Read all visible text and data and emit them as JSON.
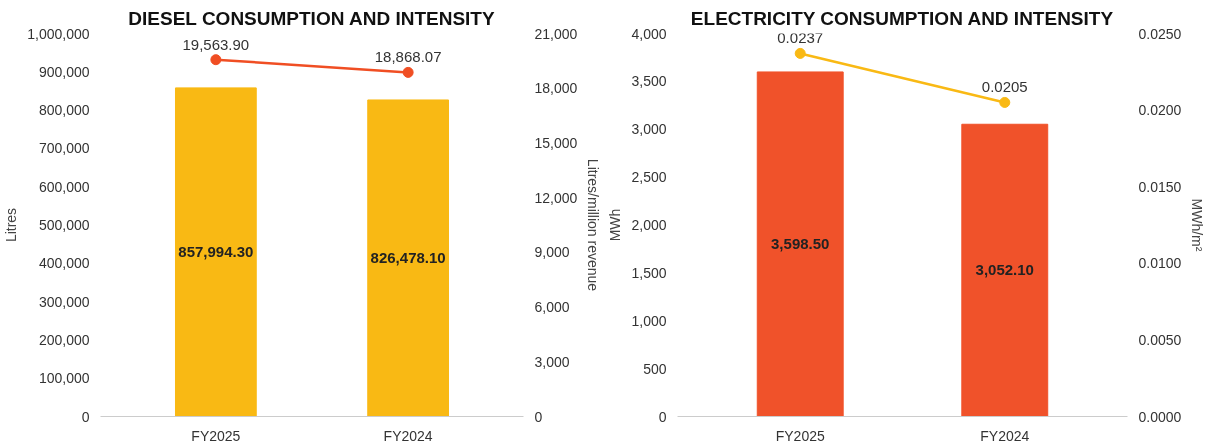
{
  "chart_data": [
    {
      "type": "bar",
      "title": "DIESEL CONSUMPTION AND INTENSITY",
      "ylabel": "Litres",
      "y2label": "Litres/million revenue",
      "categories": [
        "FY2025",
        "FY2024"
      ],
      "marker": "circle",
      "ylim": [
        0,
        1000000
      ],
      "yticks": [
        {
          "value": 0,
          "label": "0"
        },
        {
          "value": 100000,
          "label": "100,000"
        },
        {
          "value": 200000,
          "label": "200,000"
        },
        {
          "value": 300000,
          "label": "300,000"
        },
        {
          "value": 400000,
          "label": "400,000"
        },
        {
          "value": 500000,
          "label": "500,000"
        },
        {
          "value": 600000,
          "label": "600,000"
        },
        {
          "value": 700000,
          "label": "700,000"
        },
        {
          "value": 800000,
          "label": "800,000"
        },
        {
          "value": 900000,
          "label": "900,000"
        },
        {
          "value": 1000000,
          "label": "1,000,000"
        }
      ],
      "y2lim": [
        0,
        21000
      ],
      "y2ticks": [
        {
          "value": 0,
          "label": "0"
        },
        {
          "value": 3000,
          "label": "3,000"
        },
        {
          "value": 6000,
          "label": "6,000"
        },
        {
          "value": 9000,
          "label": "9,000"
        },
        {
          "value": 12000,
          "label": "12,000"
        },
        {
          "value": 15000,
          "label": "15,000"
        },
        {
          "value": 18000,
          "label": "18,000"
        },
        {
          "value": 21000,
          "label": "21,000"
        }
      ],
      "series": [
        {
          "color": "#f9b914",
          "values": [
            857994.3,
            826478.1
          ],
          "value_labels": [
            "857,994.30",
            "826,478.10"
          ]
        },
        {
          "type": "line",
          "axis": "y2",
          "color": "#f04e23",
          "values": [
            19563.9,
            18868.07
          ],
          "value_labels": [
            "19,563.90",
            "18,868.07"
          ]
        }
      ]
    },
    {
      "type": "bar",
      "title": "ELECTRICITY CONSUMPTION AND INTENSITY",
      "ylabel": "MWh",
      "y2label": "MWh/m²",
      "categories": [
        "FY2025",
        "FY2024"
      ],
      "marker": "circle",
      "ylim": [
        0,
        4000
      ],
      "yticks": [
        {
          "value": 0,
          "label": "0"
        },
        {
          "value": 500,
          "label": "500"
        },
        {
          "value": 1000,
          "label": "1,000"
        },
        {
          "value": 1500,
          "label": "1,500"
        },
        {
          "value": 2000,
          "label": "2,000"
        },
        {
          "value": 2500,
          "label": "2,500"
        },
        {
          "value": 3000,
          "label": "3,000"
        },
        {
          "value": 3500,
          "label": "3,500"
        },
        {
          "value": 4000,
          "label": "4,000"
        }
      ],
      "y2lim": [
        0,
        0.025
      ],
      "y2ticks": [
        {
          "value": 0,
          "label": "0.0000"
        },
        {
          "value": 0.005,
          "label": "0.0050"
        },
        {
          "value": 0.01,
          "label": "0.0100"
        },
        {
          "value": 0.015,
          "label": "0.0150"
        },
        {
          "value": 0.02,
          "label": "0.0200"
        },
        {
          "value": 0.025,
          "label": "0.0250"
        }
      ],
      "series": [
        {
          "color": "#f0522a",
          "values": [
            3598.5,
            3052.1
          ],
          "value_labels": [
            "3,598.50",
            "3,052.10"
          ]
        },
        {
          "type": "line",
          "axis": "y2",
          "color": "#f9b914",
          "values": [
            0.0237,
            0.0205
          ],
          "value_labels": [
            "0.0237",
            "0.0205"
          ]
        }
      ]
    }
  ]
}
